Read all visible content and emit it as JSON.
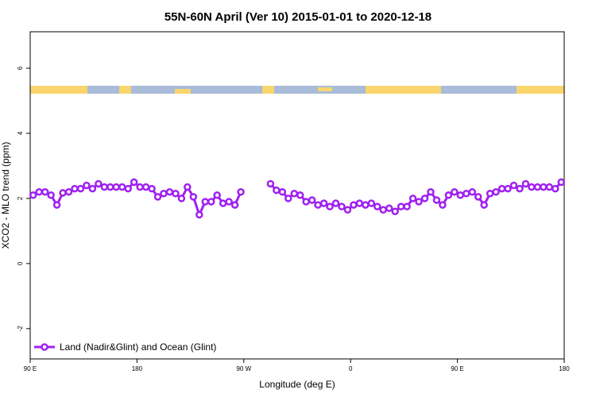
{
  "chart_data": {
    "type": "line",
    "title": "55N-60N April (Ver 10)   2015-01-01 to 2020-12-18",
    "x_label": "Longitude (deg E)",
    "y_label": "XCO2 - MLO trend (ppm)",
    "xlim": [
      90,
      540
    ],
    "ylim": [
      -2.93,
      7.12
    ],
    "xticks": [
      {
        "value": 90,
        "label": "90 E"
      },
      180,
      {
        "value": 270,
        "label": "90 W"
      },
      {
        "value": 360,
        "label": "0"
      },
      {
        "value": 450,
        "label": "90 E"
      },
      {
        "value": 540,
        "label": "180"
      }
    ],
    "yticks": [
      -2,
      0,
      2,
      4,
      6
    ],
    "legend_position": "bottomleft",
    "x": [
      92.5,
      97.5,
      102.5,
      107.5,
      112.5,
      117.5,
      122.5,
      127.5,
      132.5,
      137.5,
      142.5,
      147.5,
      152.5,
      157.5,
      162.5,
      167.5,
      172.5,
      177.5,
      182.5,
      187.5,
      192.5,
      197.5,
      202.5,
      207.5,
      212.5,
      217.5,
      222.5,
      227.5,
      232.5,
      237.5,
      242.5,
      247.5,
      252.5,
      257.5,
      262.5,
      267.5,
      272.5,
      277.5,
      282.5,
      287.5,
      292.5,
      297.5,
      302.5,
      307.5,
      312.5,
      317.5,
      322.5,
      327.5,
      332.5,
      337.5,
      342.5,
      347.5,
      352.5,
      357.5,
      362.5,
      367.5,
      372.5,
      377.5,
      382.5,
      387.5,
      392.5,
      397.5,
      402.5,
      407.5,
      412.5,
      417.5,
      422.5,
      427.5,
      432.5,
      437.5,
      442.5,
      447.5,
      452.5,
      457.5,
      462.5,
      467.5,
      472.5,
      477.5,
      482.5,
      487.5,
      492.5,
      497.5,
      502.5,
      507.5,
      512.5,
      517.5,
      522.5,
      527.5,
      532.5,
      537.5
    ],
    "series": [
      {
        "name": "Land (Nadir&Glint) and Ocean (Glint)",
        "color": "#a020f0",
        "values": [
          2.1,
          2.2,
          2.2,
          2.1,
          1.8,
          2.17,
          2.2,
          2.3,
          2.3,
          2.4,
          2.3,
          2.45,
          2.35,
          2.35,
          2.35,
          2.35,
          2.3,
          2.5,
          2.35,
          2.35,
          2.3,
          2.05,
          2.15,
          2.2,
          2.15,
          2.0,
          2.35,
          2.05,
          1.5,
          1.9,
          1.9,
          2.1,
          1.85,
          1.9,
          1.8,
          2.2,
          null,
          null,
          null,
          null,
          2.45,
          2.25,
          2.2,
          2.0,
          2.15,
          2.1,
          1.9,
          1.95,
          1.8,
          1.85,
          1.75,
          1.85,
          1.75,
          1.65,
          1.8,
          1.85,
          1.8,
          1.85,
          1.75,
          1.65,
          1.7,
          1.6,
          1.75,
          1.75,
          2.0,
          1.9,
          2.0,
          2.2,
          1.95,
          1.8,
          2.1,
          2.2,
          2.1,
          2.15,
          2.2,
          2.05,
          1.8,
          2.15,
          2.2,
          2.3,
          2.3,
          2.4,
          2.3,
          2.45,
          2.35,
          2.35,
          2.35,
          2.35,
          2.3,
          2.5
        ]
      }
    ]
  }
}
